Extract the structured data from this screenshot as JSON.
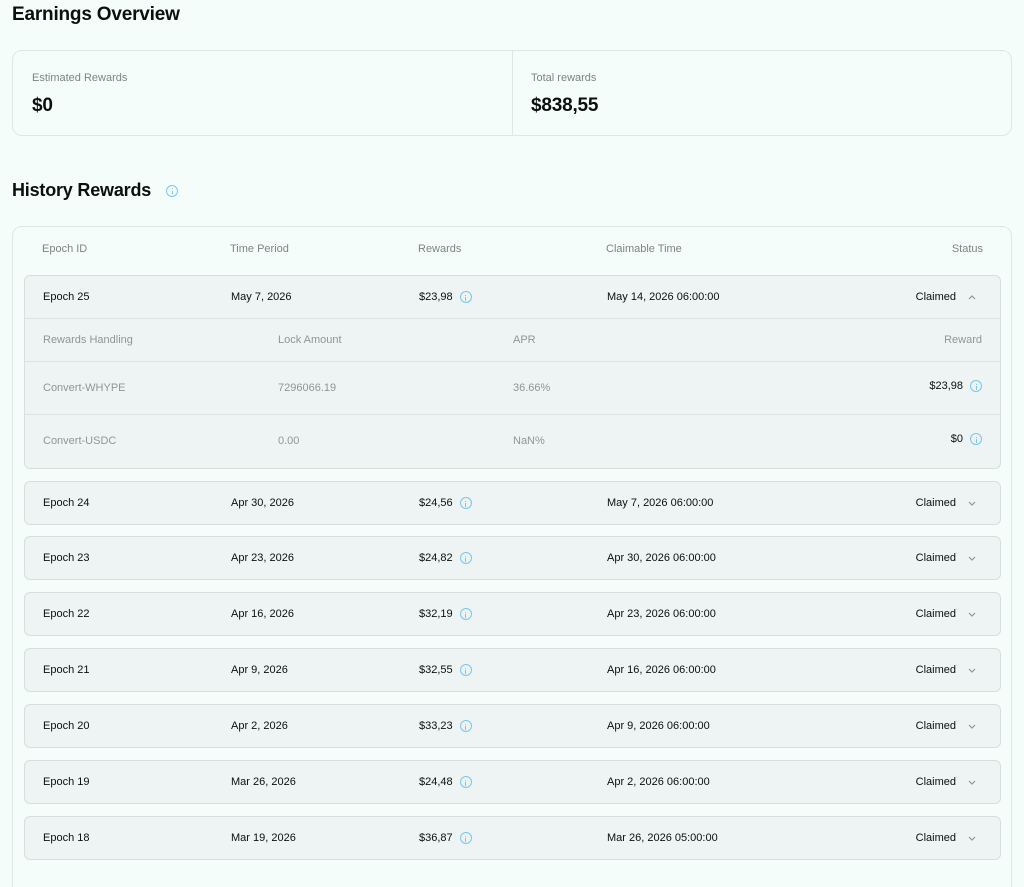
{
  "overview": {
    "title": "Earnings Overview",
    "estimated_label": "Estimated Rewards",
    "estimated_value": "$0",
    "total_label": "Total rewards",
    "total_value": "$838,55"
  },
  "history": {
    "title": "History Rewards",
    "columns": {
      "epoch": "Epoch ID",
      "period": "Time Period",
      "rewards": "Rewards",
      "claimable": "Claimable Time",
      "status": "Status"
    },
    "details": {
      "headers": {
        "handling": "Rewards Handling",
        "lock": "Lock Amount",
        "apr": "APR",
        "reward": "Reward"
      },
      "items": [
        {
          "handling": "Convert-WHYPE",
          "lock": "7296066.19",
          "apr": "36.66%",
          "reward": "$23,98"
        },
        {
          "handling": "Convert-USDC",
          "lock": "0.00",
          "apr": "NaN%",
          "reward": "$0"
        }
      ]
    },
    "rows": [
      {
        "epoch": "Epoch 25",
        "period": "May 7, 2026",
        "rewards": "$23,98",
        "claimable": "May 14, 2026 06:00:00",
        "status": "Claimed",
        "expanded": true
      },
      {
        "epoch": "Epoch 24",
        "period": "Apr 30, 2026",
        "rewards": "$24,56",
        "claimable": "May 7, 2026 06:00:00",
        "status": "Claimed"
      },
      {
        "epoch": "Epoch 23",
        "period": "Apr 23, 2026",
        "rewards": "$24,82",
        "claimable": "Apr 30, 2026 06:00:00",
        "status": "Claimed"
      },
      {
        "epoch": "Epoch 22",
        "period": "Apr 16, 2026",
        "rewards": "$32,19",
        "claimable": "Apr 23, 2026 06:00:00",
        "status": "Claimed"
      },
      {
        "epoch": "Epoch 21",
        "period": "Apr 9, 2026",
        "rewards": "$32,55",
        "claimable": "Apr 16, 2026 06:00:00",
        "status": "Claimed"
      },
      {
        "epoch": "Epoch 20",
        "period": "Apr 2, 2026",
        "rewards": "$33,23",
        "claimable": "Apr 9, 2026 06:00:00",
        "status": "Claimed"
      },
      {
        "epoch": "Epoch 19",
        "period": "Mar 26, 2026",
        "rewards": "$24,48",
        "claimable": "Apr 2, 2026 06:00:00",
        "status": "Claimed"
      },
      {
        "epoch": "Epoch 18",
        "period": "Mar 19, 2026",
        "rewards": "$36,87",
        "claimable": "Mar 26, 2026 05:00:00",
        "status": "Claimed"
      }
    ]
  },
  "icons": {
    "info": "info-icon",
    "expand": "chevron-down-icon",
    "collapse": "chevron-up-icon"
  },
  "colors": {
    "background": "#f5fdfb",
    "row_background": "#eef4f3",
    "info_accent": "#7ac6f0"
  }
}
